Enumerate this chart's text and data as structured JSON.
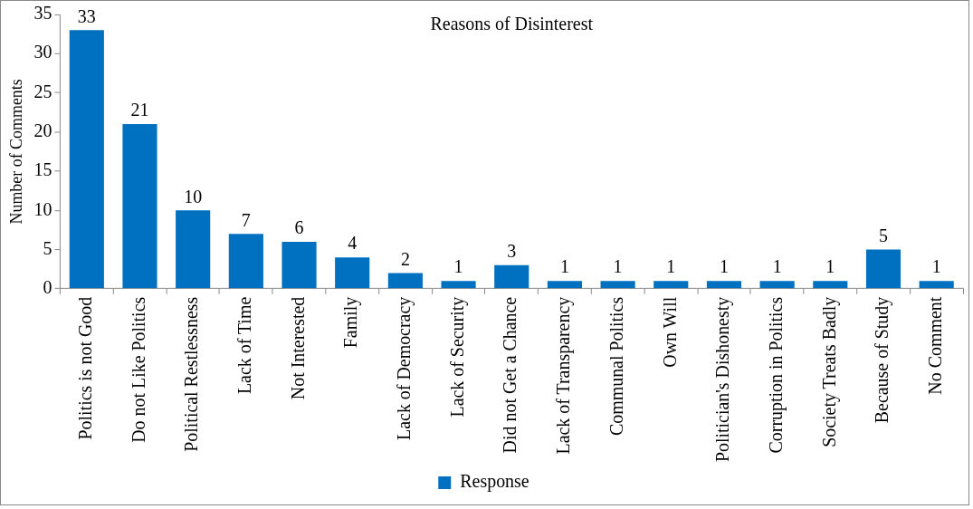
{
  "chart_data": {
    "type": "bar",
    "title": "Reasons of Disinterest",
    "ylabel": "Number of Comments",
    "categories": [
      "Politics is not Good",
      "Do not Like Politics",
      "Political Restlessness",
      "Lack of Time",
      "Not Interested",
      "Family",
      "Lack of Democracy",
      "Lack of Security",
      "Did not Get a Chance",
      "Lack of Transparency",
      "Communal Politics",
      "Own Will",
      "Politician's Dishonesty",
      "Corruption in Politics",
      "Society Treats Badly",
      "Because of Study",
      "No Comment"
    ],
    "series": [
      {
        "name": "Response",
        "color": "#0070c0",
        "values": [
          33,
          21,
          10,
          7,
          6,
          4,
          2,
          1,
          3,
          1,
          1,
          1,
          1,
          1,
          1,
          5,
          1
        ]
      }
    ],
    "ylim": [
      0,
      35
    ],
    "yticks": [
      0,
      5,
      10,
      15,
      20,
      25,
      30,
      35
    ],
    "grid": false,
    "legend": "bottom",
    "data_labels": true
  }
}
